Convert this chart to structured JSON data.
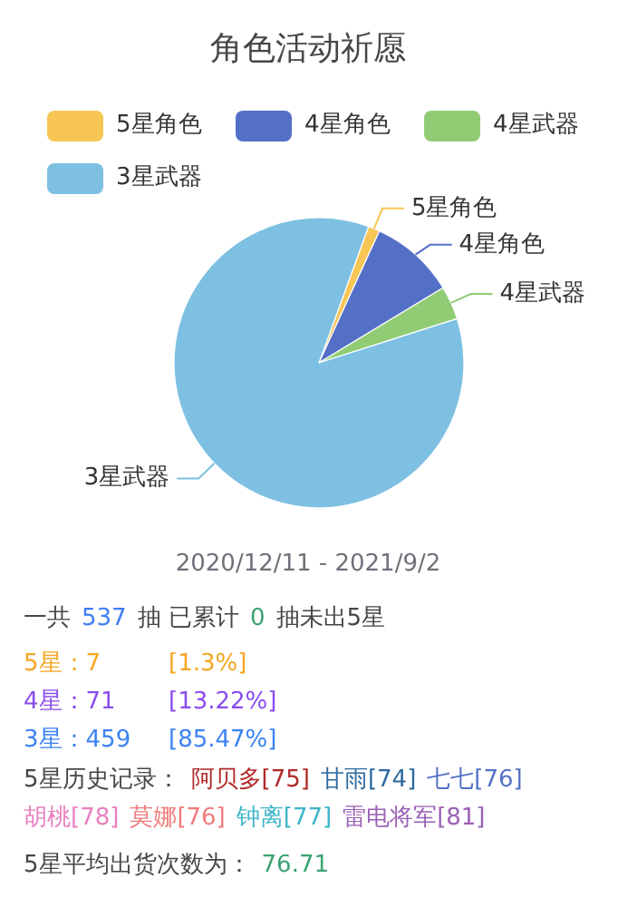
{
  "chart_data": {
    "type": "pie",
    "title": "角色活动祈愿",
    "categories": [
      "5星角色",
      "4星角色",
      "4星武器",
      "3星武器"
    ],
    "values": [
      1.3,
      9.5,
      3.73,
      85.47
    ],
    "colors": [
      "#f7c655",
      "#5470c6",
      "#91cc75",
      "#7ec0e2"
    ],
    "legend": "top",
    "annotations": [
      "2020/12/11   -   2021/9/2",
      "一共",
      "537",
      "抽 已累计",
      "0",
      "抽未出5星",
      "5星：7",
      "[1.3%]",
      "4星：71",
      "[13.22%]",
      "3星：459",
      "[85.47%]",
      "5星历史记录：",
      "阿贝多[75]",
      "甘雨[74]",
      "七七[76]",
      "胡桃[78]",
      "莫娜[76]",
      "钟离[77]",
      "雷电将军[81]",
      "5星平均出货次数为：",
      "76.71"
    ]
  }
}
